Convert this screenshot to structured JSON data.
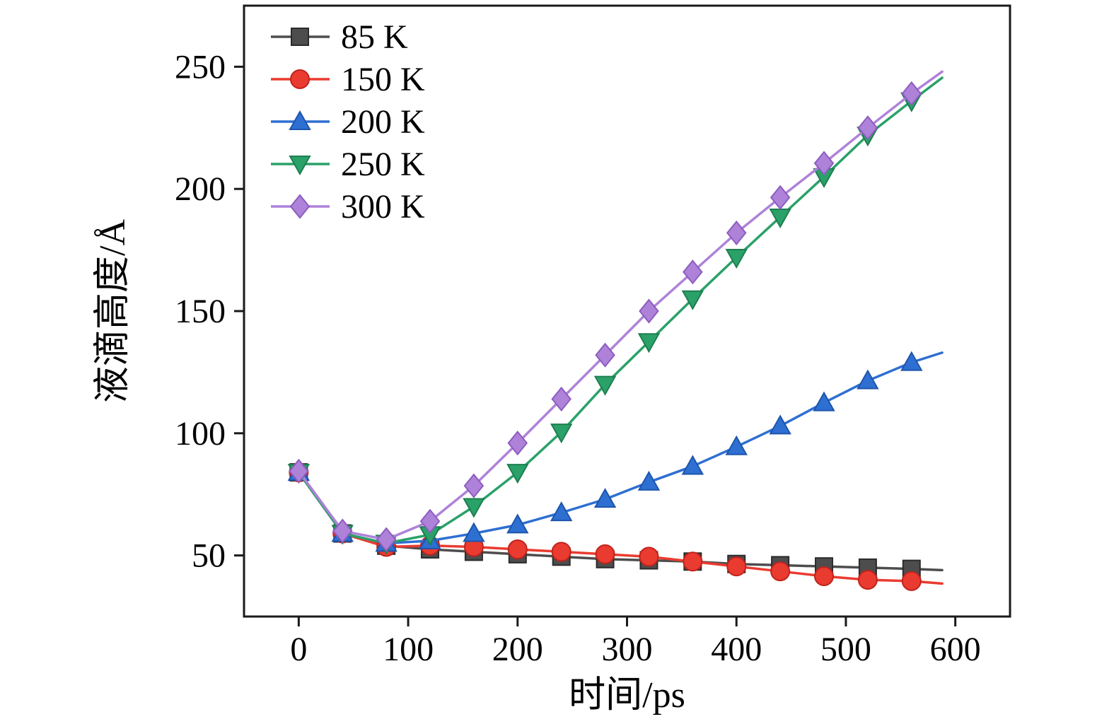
{
  "chart_data": {
    "type": "line",
    "title": "",
    "xlabel": "时间/ps",
    "ylabel": "液滴高度/Å",
    "xlim": [
      -50,
      650
    ],
    "ylim": [
      25,
      275
    ],
    "xticks": [
      0,
      100,
      200,
      300,
      400,
      500,
      600
    ],
    "yticks": [
      50,
      100,
      150,
      200,
      250
    ],
    "grid": false,
    "legend_position": "top-left-inside",
    "frame_color": "#1a1a1a",
    "x": [
      0,
      40,
      80,
      120,
      160,
      200,
      240,
      280,
      320,
      360,
      400,
      440,
      480,
      520,
      560
    ],
    "x_end": 588,
    "series": [
      {
        "name": "85 K",
        "color": "#4d4d4d",
        "edge": "#2b2b2b",
        "marker": "square",
        "values": [
          84,
          59,
          54,
          52.5,
          51.5,
          50.5,
          49.5,
          48.5,
          48,
          47.5,
          46.5,
          46,
          45.5,
          45,
          44.5
        ],
        "end_value": 44
      },
      {
        "name": "150 K",
        "color": "#ea3b30",
        "edge": "#c0231c",
        "marker": "circle",
        "values": [
          84,
          59,
          53.5,
          54,
          53.5,
          52.5,
          51.5,
          50.5,
          49.5,
          47.5,
          45.5,
          43.5,
          41.5,
          40,
          39.5
        ],
        "end_value": 38.5
      },
      {
        "name": "200 K",
        "color": "#2e6fd2",
        "edge": "#1e55ab",
        "marker": "triangle-up",
        "values": [
          84,
          59,
          55,
          56,
          59,
          62.5,
          67.5,
          73,
          80,
          86.5,
          94.5,
          103,
          112.5,
          121.5,
          129
        ],
        "end_value": 133
      },
      {
        "name": "250 K",
        "color": "#2aa168",
        "edge": "#1d7f50",
        "marker": "triangle-down",
        "values": [
          84,
          59,
          55,
          58.5,
          70,
          84,
          100.5,
          120,
          137.5,
          155,
          172,
          188.5,
          205,
          222,
          236
        ],
        "end_value": 245.5
      },
      {
        "name": "300 K",
        "color": "#ae82d9",
        "edge": "#8d5cc0",
        "marker": "diamond",
        "values": [
          84.5,
          60,
          56.5,
          64,
          78.5,
          96,
          114,
          132,
          150,
          166,
          182,
          196.5,
          210.5,
          225,
          239
        ],
        "end_value": 248
      }
    ]
  }
}
